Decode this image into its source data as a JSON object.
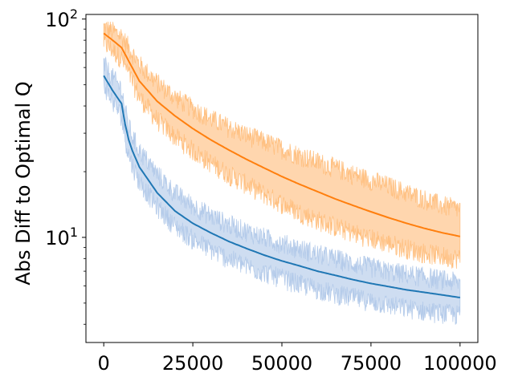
{
  "chart_data": {
    "type": "line",
    "title": "",
    "xlabel": "",
    "ylabel": "Abs Diff to Optimal Q",
    "yscale": "log",
    "xlim": [
      -5000,
      105000
    ],
    "ylim": [
      3.3,
      105
    ],
    "grid": false,
    "legend": "none",
    "x_ticks": [
      {
        "value": 0,
        "label": "0"
      },
      {
        "value": 25000,
        "label": "25000"
      },
      {
        "value": 50000,
        "label": "50000"
      },
      {
        "value": 75000,
        "label": "75000"
      },
      {
        "value": 100000,
        "label": "100000"
      }
    ],
    "y_major_ticks": [
      {
        "value": 10,
        "base": "10",
        "exp": "1"
      },
      {
        "value": 100,
        "base": "10",
        "exp": "2"
      }
    ],
    "y_minor_ticks": [
      4,
      5,
      6,
      7,
      8,
      9,
      20,
      30,
      40,
      50,
      60,
      70,
      80,
      90
    ],
    "series": [
      {
        "color": "#ff7f0e",
        "fill_color": "#ffbb78",
        "x": [
          0,
          2500,
          5000,
          7500,
          10000,
          15000,
          20000,
          25000,
          30000,
          35000,
          40000,
          45000,
          50000,
          55000,
          60000,
          65000,
          70000,
          75000,
          80000,
          85000,
          90000,
          95000,
          100000
        ],
        "y": [
          86,
          80,
          74,
          62,
          52,
          42,
          36,
          31.5,
          28,
          25.2,
          22.8,
          20.8,
          19.0,
          17.5,
          16.2,
          15.0,
          14.0,
          13.1,
          12.3,
          11.6,
          11.0,
          10.5,
          10.1
        ],
        "band_lower": [
          78,
          72,
          66,
          54,
          44,
          34.5,
          29,
          25,
          22,
          19.5,
          17.5,
          15.8,
          14.3,
          13.0,
          12.0,
          11.2,
          10.5,
          9.9,
          9.4,
          8.9,
          8.5,
          8.2,
          8.0
        ],
        "band_upper": [
          92,
          88,
          84,
          72,
          62,
          51,
          44,
          39,
          35,
          32,
          29.5,
          27.5,
          25.5,
          23.8,
          22.2,
          20.8,
          19.5,
          18.3,
          17.2,
          16.0,
          15.0,
          14.0,
          13.5
        ]
      },
      {
        "color": "#1f77b4",
        "fill_color": "#aec7e8",
        "x": [
          0,
          2500,
          5000,
          6000,
          7000,
          8000,
          10000,
          15000,
          20000,
          25000,
          30000,
          35000,
          40000,
          45000,
          50000,
          55000,
          60000,
          65000,
          70000,
          75000,
          80000,
          85000,
          90000,
          95000,
          100000
        ],
        "y": [
          55,
          47,
          41,
          33,
          28,
          25,
          21,
          16,
          13.2,
          11.6,
          10.5,
          9.6,
          8.9,
          8.3,
          7.8,
          7.4,
          7.0,
          6.7,
          6.4,
          6.15,
          5.95,
          5.75,
          5.6,
          5.45,
          5.3
        ],
        "band_lower": [
          50,
          42,
          36,
          28.5,
          24,
          21.5,
          18,
          13.8,
          11.3,
          9.8,
          8.8,
          8.0,
          7.4,
          6.9,
          6.5,
          6.1,
          5.8,
          5.5,
          5.3,
          5.1,
          4.9,
          4.75,
          4.6,
          4.5,
          4.4
        ],
        "band_upper": [
          62,
          54,
          48,
          38,
          32.5,
          29,
          25,
          19.5,
          16,
          14,
          12.6,
          11.5,
          10.7,
          10.0,
          9.4,
          8.9,
          8.4,
          8.0,
          7.6,
          7.3,
          7.0,
          6.8,
          6.6,
          6.4,
          6.2
        ]
      }
    ]
  }
}
